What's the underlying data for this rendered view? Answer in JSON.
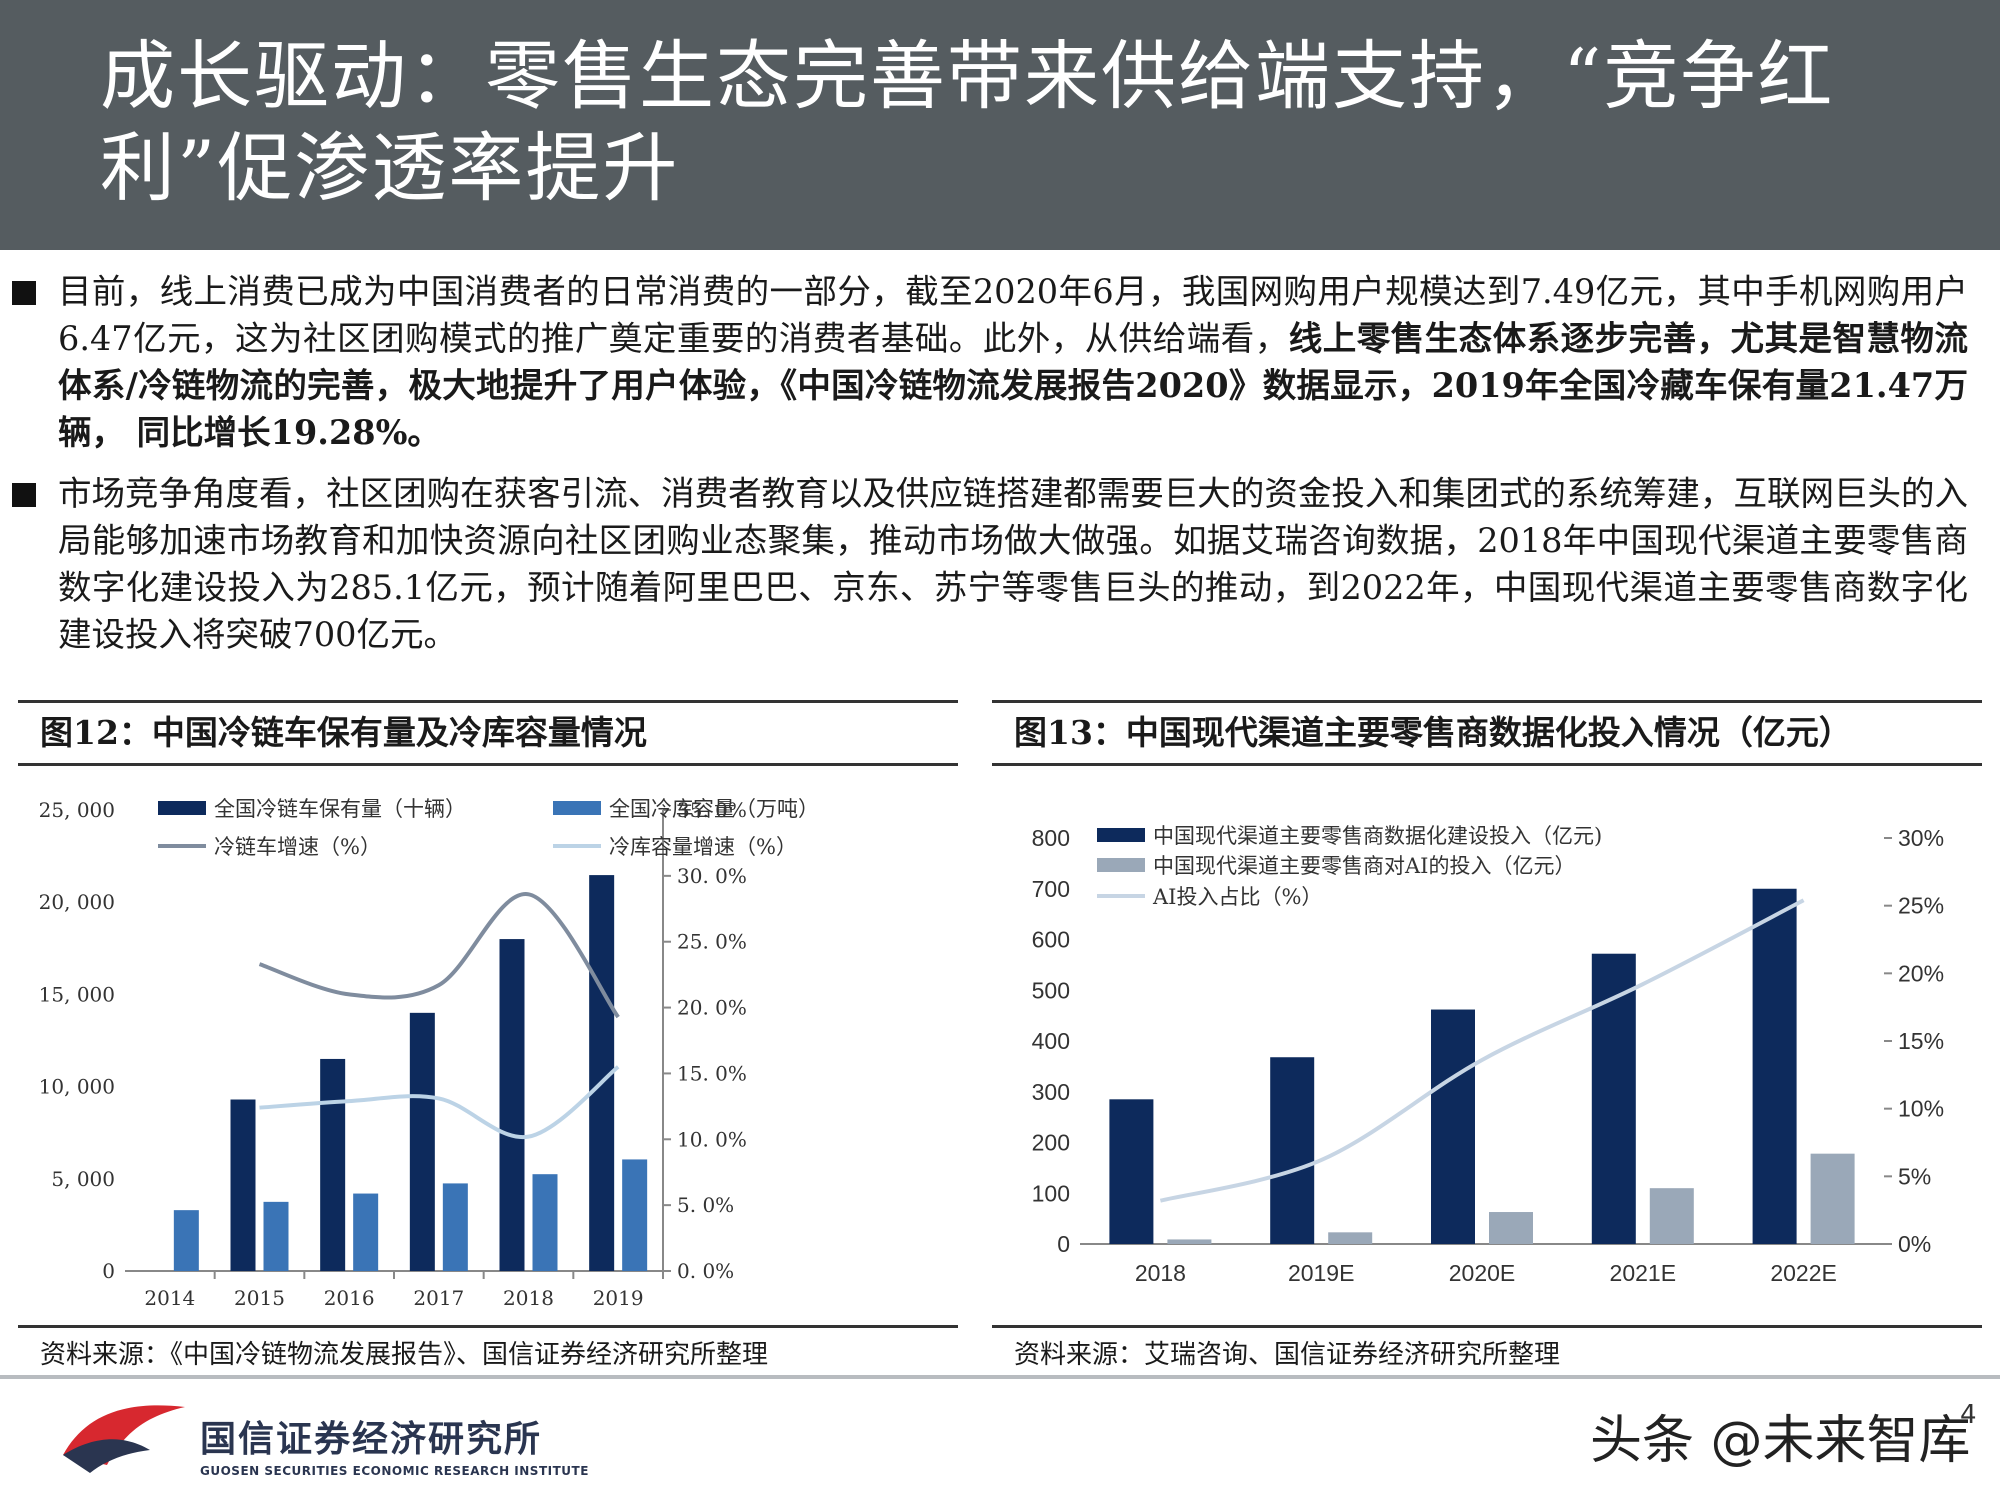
{
  "title": "成长驱动：零售生态完善带来供给端支持，“竞争红利”促渗透率提升",
  "bullets": [
    {
      "plain": "目前，线上消费已成为中国消费者的日常消费的一部分，截至2020年6月，我国网购用户规模达到7.49亿元，其中手机网购用户6.47亿元，这为社区团购模式的推广奠定重要的消费者基础。此外，从供给端看，",
      "bold": "线上零售生态体系逐步完善，尤其是智慧物流体系/冷链物流的完善，极大地提升了用户体验，《中国冷链物流发展报告2020》数据显示，2019年全国冷藏车保有量21.47万辆， 同比增长19.28%。"
    },
    {
      "plain": "市场竞争角度看，社区团购在获客引流、消费者教育以及供应链搭建都需要巨大的资金投入和集团式的系统筹建，互联网巨头的入局能够加速市场教育和加快资源向社区团购业态聚集，推动市场做大做强。如据艾瑞咨询数据，2018年中国现代渠道主要零售商数字化建设投入为285.1亿元，预计随着阿里巴巴、京东、苏宁等零售巨头的推动，到2022年，中国现代渠道主要零售商数字化建设投入将突破700亿元。",
      "bold": ""
    }
  ],
  "fig12": {
    "title": "图12：中国冷链车保有量及冷库容量情况",
    "source": "资料来源：《中国冷链物流发展报告》、国信证券经济研究所整理"
  },
  "fig13": {
    "title": "图13：中国现代渠道主要零售商数据化投入情况（亿元）",
    "source": "资料来源：艾瑞咨询、国信证券经济研究所整理"
  },
  "chart_data": [
    {
      "type": "bar",
      "title": "图12：中国冷链车保有量及冷库容量情况",
      "categories": [
        "2014",
        "2015",
        "2016",
        "2017",
        "2018",
        "2019"
      ],
      "y_ticks": [
        "0",
        "5, 000",
        "10, 000",
        "15, 000",
        "20, 000",
        "25, 000"
      ],
      "y2_ticks": [
        "0. 0%",
        "5. 0%",
        "10. 0%",
        "15. 0%",
        "20. 0%",
        "25. 0%",
        "30. 0%",
        "35. 0%"
      ],
      "ylim": [
        0,
        25000
      ],
      "y2lim": [
        0,
        35
      ],
      "series": [
        {
          "name": "全国冷链车保有量（十辆）",
          "kind": "bar",
          "color": "#0d2a5c",
          "values": [
            null,
            9300,
            11500,
            14000,
            18000,
            21470
          ]
        },
        {
          "name": "全国冷库容量（万吨）",
          "kind": "bar",
          "color": "#3a74b6",
          "values": [
            3300,
            3750,
            4200,
            4750,
            5250,
            6050
          ]
        },
        {
          "name": "冷链车增速（%）",
          "kind": "line",
          "axis": "right",
          "color": "#7f8c9e",
          "values": [
            null,
            23.3,
            21.0,
            21.7,
            28.6,
            19.28
          ]
        },
        {
          "name": "冷库容量增速（%）",
          "kind": "line",
          "axis": "right",
          "color": "#bcd3e6",
          "values": [
            null,
            12.4,
            12.9,
            13.1,
            10.2,
            15.5
          ]
        }
      ],
      "legend": "top"
    },
    {
      "type": "bar",
      "title": "图13：中国现代渠道主要零售商数据化投入情况（亿元）",
      "categories": [
        "2018",
        "2019E",
        "2020E",
        "2021E",
        "2022E"
      ],
      "y_ticks": [
        "0",
        "100",
        "200",
        "300",
        "400",
        "500",
        "600",
        "700",
        "800"
      ],
      "y2_ticks": [
        "0%",
        "5%",
        "10%",
        "15%",
        "20%",
        "25%",
        "30%"
      ],
      "ylim": [
        0,
        800
      ],
      "y2lim": [
        0,
        30
      ],
      "series": [
        {
          "name": "中国现代渠道主要零售商数据化建设投入（亿元)",
          "kind": "bar",
          "color": "#0d2a5c",
          "values": [
            285.1,
            368,
            462,
            572,
            700
          ]
        },
        {
          "name": "中国现代渠道主要零售商对AI的投入（亿元）",
          "kind": "bar",
          "color": "#9aa8b8",
          "values": [
            9,
            23,
            63,
            110,
            178
          ]
        },
        {
          "name": "AI投入占比（%）",
          "kind": "line",
          "axis": "right",
          "color": "#c7d5e4",
          "values": [
            3.2,
            6.2,
            13.6,
            19.2,
            25.4
          ]
        }
      ],
      "legend": "top-left"
    }
  ],
  "footer": {
    "brand_cn": "国信证券经济研究所",
    "brand_en": "GUOSEN SECURITIES ECONOMIC RESEARCH INSTITUTE",
    "watermark": "头条 @未来智库",
    "page": "4"
  }
}
